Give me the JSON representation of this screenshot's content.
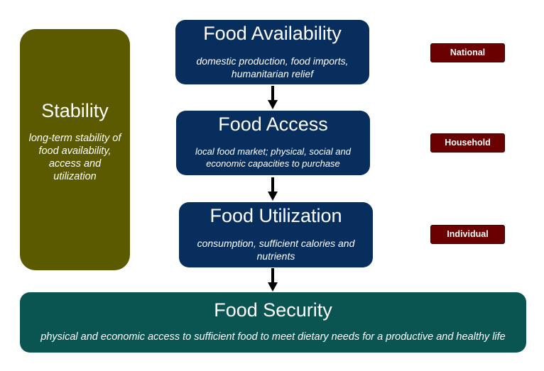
{
  "stability": {
    "title": "Stability",
    "description": "long-term stability of food availability, access and utilization"
  },
  "availability": {
    "title": "Food Availability",
    "description": "domestic production, food imports, humanitarian relief"
  },
  "access": {
    "title": "Food Access",
    "description": "local food market; physical, social and economic capacities to purchase"
  },
  "utilization": {
    "title": "Food Utilization",
    "description": "consumption, sufficient calories and nutrients"
  },
  "security": {
    "title": "Food Security",
    "description": "physical and economic access to sufficient food to meet dietary needs for a productive and healthy life"
  },
  "levels": {
    "national": "National",
    "household": "Household",
    "individual": "Individual"
  },
  "colors": {
    "stability": "#5b5a00",
    "pillar": "#082e5e",
    "security": "#0a5552",
    "level_tag": "#6a0000"
  }
}
